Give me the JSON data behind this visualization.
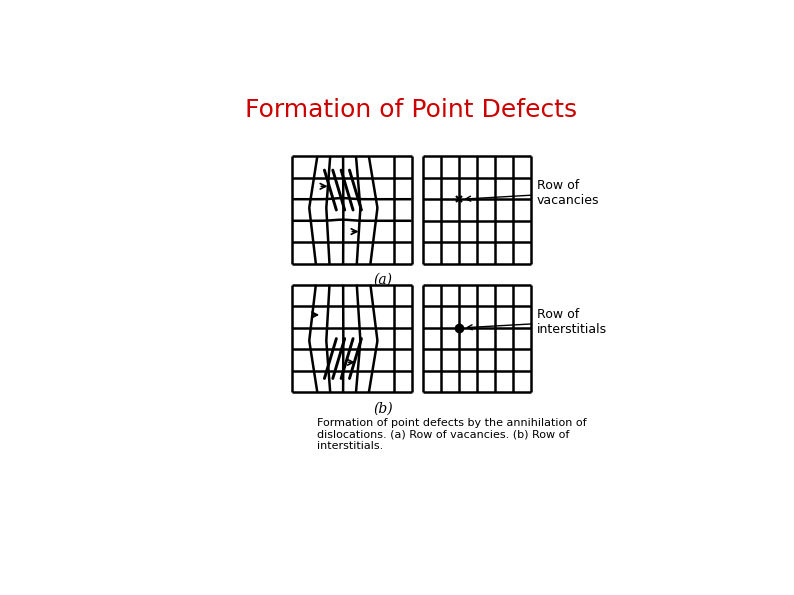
{
  "title": "Formation of Point Defects",
  "title_color": "#cc0000",
  "title_fontsize": 18,
  "caption": "Formation of point defects by the annihilation of\ndislocations. (a) Row of vacancies. (b) Row of\ninterstitials.",
  "caption_fontsize": 8,
  "bg_color": "#ffffff",
  "line_color": "#000000",
  "label_a": "(a)",
  "label_b": "(b)",
  "annotation_a": "Row of\nvacancies",
  "annotation_b": "Row of\ninterstitials"
}
